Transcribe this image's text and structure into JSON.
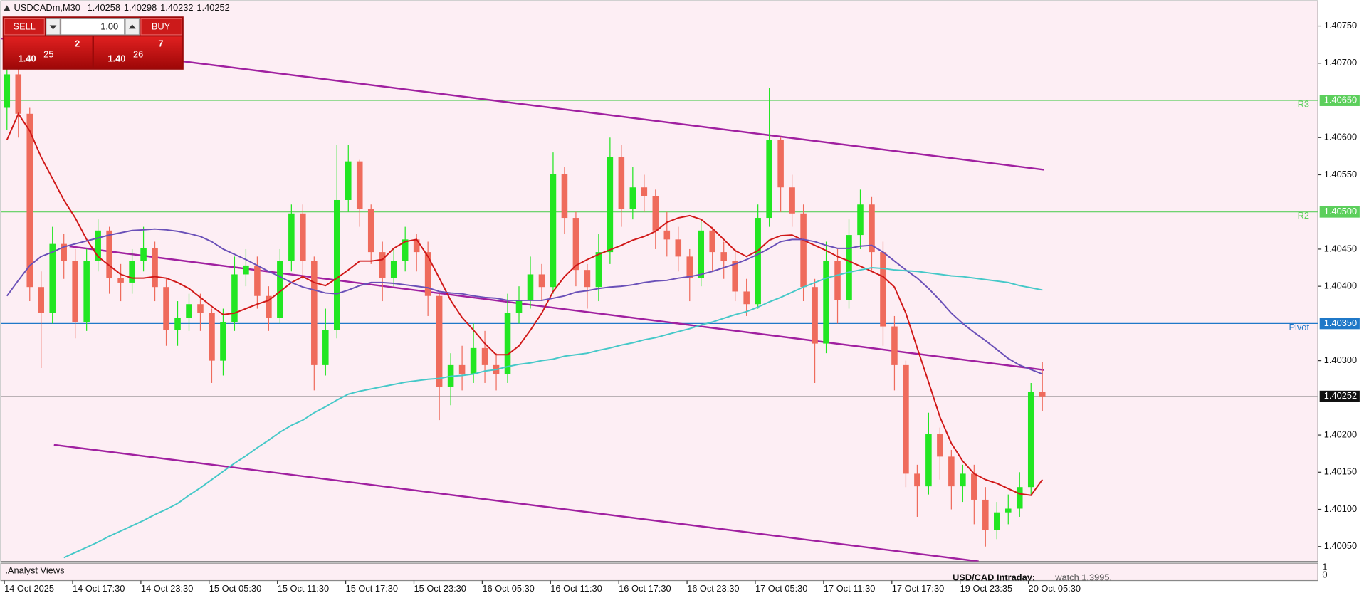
{
  "chart_data": {
    "type": "candlestick",
    "title": "USDCADm,M30",
    "categories": [
      "14 Oct 2025",
      null,
      null,
      null,
      null,
      null,
      "14 Oct 17:30",
      null,
      null,
      null,
      null,
      null,
      "14 Oct 23:30",
      null,
      null,
      null,
      null,
      null,
      "15 Oct 05:30",
      null,
      null,
      null,
      null,
      null,
      "15 Oct 11:30",
      null,
      null,
      null,
      null,
      null,
      "15 Oct 17:30",
      null,
      null,
      null,
      null,
      null,
      "15 Oct 23:30",
      null,
      null,
      null,
      null,
      null,
      "16 Oct 05:30",
      null,
      null,
      null,
      null,
      null,
      "16 Oct 11:30",
      null,
      null,
      null,
      null,
      null,
      "16 Oct 17:30",
      null,
      null,
      null,
      null,
      null,
      "16 Oct 23:30",
      null,
      null,
      null,
      null,
      null,
      "17 Oct 05:30",
      null,
      null,
      null,
      null,
      null,
      "17 Oct 11:30",
      null,
      null,
      null,
      null,
      null,
      "17 Oct 17:30",
      null,
      null,
      null,
      null,
      null,
      "19 Oct 23:35",
      null,
      null,
      null,
      null,
      null,
      "20 Oct 05:30",
      null
    ],
    "open": [
      1.4064,
      1.40685,
      1.40632,
      1.40399,
      1.40364,
      1.40457,
      1.40434,
      1.40352,
      1.40434,
      1.40475,
      1.40411,
      1.40405,
      1.40434,
      1.40451,
      1.40399,
      1.40341,
      1.40358,
      1.40376,
      1.40364,
      1.403,
      1.40352,
      1.40416,
      1.40428,
      1.40387,
      1.40358,
      1.40434,
      1.40498,
      1.40434,
      1.40294,
      1.40341,
      1.40516,
      1.40568,
      1.40504,
      1.40446,
      1.40411,
      1.40434,
      1.40463,
      1.40446,
      1.40387,
      1.40265,
      1.40294,
      1.40282,
      1.40317,
      1.40294,
      1.40282,
      1.40364,
      1.40381,
      1.40416,
      1.40399,
      1.40551,
      1.40492,
      1.40422,
      1.40399,
      1.40446,
      1.40574,
      1.40504,
      1.40533,
      1.40521,
      1.40475,
      1.40463,
      1.4044,
      1.40411,
      1.40475,
      1.40446,
      1.40434,
      1.40393,
      1.40376,
      1.40492,
      1.40597,
      1.40533,
      1.40498,
      1.40399,
      1.40323,
      1.40434,
      1.40381,
      1.40469,
      1.4051,
      1.40446,
      1.40346,
      1.40294,
      1.40148,
      1.40131,
      1.40201,
      1.40171,
      1.40131,
      1.40148,
      1.40113,
      1.40072,
      1.40096,
      1.40101,
      1.4013,
      1.40258
    ],
    "high": [
      1.4072,
      1.407,
      1.4064,
      1.4042,
      1.4048,
      1.4047,
      1.4045,
      1.4045,
      1.4049,
      1.4048,
      1.4043,
      1.4045,
      1.4048,
      1.4046,
      1.4041,
      1.4038,
      1.4039,
      1.4039,
      1.4037,
      1.4037,
      1.4044,
      1.4045,
      1.4044,
      1.404,
      1.4045,
      1.4051,
      1.4051,
      1.4044,
      1.4037,
      1.4059,
      1.4059,
      1.4057,
      1.4051,
      1.4046,
      1.4045,
      1.4048,
      1.4047,
      1.4046,
      1.4039,
      1.4031,
      1.4032,
      1.4035,
      1.4034,
      1.4031,
      1.4039,
      1.404,
      1.4044,
      1.4043,
      1.4058,
      1.4056,
      1.405,
      1.4043,
      1.4047,
      1.406,
      1.4059,
      1.4056,
      1.4055,
      1.4053,
      1.405,
      1.4048,
      1.4045,
      1.4049,
      1.4048,
      1.4046,
      1.4045,
      1.4041,
      1.4051,
      1.40667,
      1.406,
      1.4055,
      1.4051,
      1.4041,
      1.4046,
      1.4045,
      1.4049,
      1.4053,
      1.4052,
      1.4046,
      1.4036,
      1.403,
      1.4016,
      1.4023,
      1.4021,
      1.4018,
      1.4016,
      1.4016,
      1.4013,
      1.4011,
      1.4012,
      1.4015,
      1.4027,
      1.40298
    ],
    "low": [
      1.4061,
      1.406,
      1.4038,
      1.4029,
      1.4035,
      1.4041,
      1.4033,
      1.4034,
      1.4042,
      1.4039,
      1.4038,
      1.4039,
      1.4042,
      1.4038,
      1.4032,
      1.4032,
      1.4034,
      1.4034,
      1.4027,
      1.4028,
      1.4034,
      1.404,
      1.4037,
      1.4034,
      1.4035,
      1.4042,
      1.4041,
      1.4026,
      1.4028,
      1.4033,
      1.405,
      1.4048,
      1.4043,
      1.4038,
      1.404,
      1.4042,
      1.4042,
      1.4036,
      1.4022,
      1.4024,
      1.4026,
      1.4027,
      1.4027,
      1.4026,
      1.4027,
      1.4035,
      1.4037,
      1.4038,
      1.4039,
      1.4047,
      1.404,
      1.4037,
      1.4038,
      1.4043,
      1.4048,
      1.4049,
      1.405,
      1.4045,
      1.4044,
      1.4042,
      1.4038,
      1.404,
      1.4042,
      1.4041,
      1.4038,
      1.4036,
      1.4037,
      1.4048,
      1.405,
      1.4048,
      1.4038,
      1.4027,
      1.4031,
      1.4035,
      1.4037,
      1.4045,
      1.4042,
      1.4032,
      1.4026,
      1.4013,
      1.4009,
      1.4012,
      1.4014,
      1.401,
      1.4011,
      1.4008,
      1.4005,
      1.4006,
      1.4008,
      1.4009,
      1.4012,
      1.40232
    ],
    "close": [
      1.40685,
      1.40632,
      1.40399,
      1.40364,
      1.40457,
      1.40434,
      1.40352,
      1.40434,
      1.40475,
      1.40411,
      1.40405,
      1.40434,
      1.40451,
      1.40399,
      1.40341,
      1.40358,
      1.40376,
      1.40364,
      1.403,
      1.40352,
      1.40416,
      1.40428,
      1.40387,
      1.40358,
      1.40434,
      1.40498,
      1.40434,
      1.40294,
      1.40341,
      1.40516,
      1.40568,
      1.40504,
      1.40446,
      1.40411,
      1.40434,
      1.40463,
      1.40446,
      1.40387,
      1.40265,
      1.40294,
      1.40282,
      1.40317,
      1.40294,
      1.40282,
      1.40364,
      1.40381,
      1.40416,
      1.40399,
      1.40551,
      1.40492,
      1.40422,
      1.40399,
      1.40446,
      1.40574,
      1.40504,
      1.40533,
      1.40521,
      1.40475,
      1.40463,
      1.4044,
      1.40411,
      1.40475,
      1.40446,
      1.40434,
      1.40393,
      1.40376,
      1.40492,
      1.40597,
      1.40533,
      1.40498,
      1.40399,
      1.40323,
      1.40434,
      1.40381,
      1.40469,
      1.4051,
      1.40446,
      1.40346,
      1.40294,
      1.40148,
      1.40131,
      1.40201,
      1.40171,
      1.40131,
      1.40148,
      1.40113,
      1.40072,
      1.40096,
      1.40101,
      1.4013,
      1.40258,
      1.40252
    ],
    "up_color": "#22e622",
    "down_color": "#ef6b5c",
    "series": [
      {
        "color": "#d01818",
        "values": [
          1.40597,
          1.40632,
          1.40609,
          1.40574,
          1.40545,
          1.40516,
          1.40492,
          1.40463,
          1.4044,
          1.40428,
          1.40416,
          1.40411,
          1.40411,
          1.40413,
          1.40411,
          1.40405,
          1.40397,
          1.40385,
          1.40373,
          1.40362,
          1.40364,
          1.4037,
          1.40376,
          1.40381,
          1.40393,
          1.40405,
          1.40413,
          1.40405,
          1.40401,
          1.40411,
          1.40422,
          1.40434,
          1.40434,
          1.40436,
          1.40451,
          1.4046,
          1.40463,
          1.4044,
          1.40411,
          1.40381,
          1.40358,
          1.40341,
          1.40323,
          1.40308,
          1.40308,
          1.4032,
          1.40341,
          1.40364,
          1.40393,
          1.40413,
          1.40428,
          1.40436,
          1.40443,
          1.40449,
          1.40455,
          1.40462,
          1.40467,
          1.40474,
          1.40486,
          1.40492,
          1.40495,
          1.4049,
          1.40478,
          1.40463,
          1.40448,
          1.4044,
          1.40448,
          1.40462,
          1.40468,
          1.40469,
          1.40462,
          1.40455,
          1.40448,
          1.4044,
          1.40434,
          1.40427,
          1.4042,
          1.40413,
          1.40399,
          1.40364,
          1.40317,
          1.40271,
          1.40224,
          1.40189,
          1.40165,
          1.40148,
          1.4014,
          1.40135,
          1.40128,
          1.40121,
          1.40119,
          1.4014
        ]
      },
      {
        "color": "#6a50b8",
        "values": [
          1.40387,
          1.40408,
          1.40428,
          1.4044,
          1.40446,
          1.40453,
          1.40457,
          1.40461,
          1.40465,
          1.40469,
          1.40472,
          1.40475,
          1.40476,
          1.40477,
          1.40476,
          1.40474,
          1.40471,
          1.40467,
          1.4046,
          1.4045,
          1.40443,
          1.40436,
          1.40428,
          1.4042,
          1.40413,
          1.40405,
          1.40399,
          1.40395,
          1.40391,
          1.4039,
          1.40395,
          1.40401,
          1.40405,
          1.40405,
          1.40404,
          1.40402,
          1.404,
          1.40398,
          1.40393,
          1.40391,
          1.4039,
          1.40387,
          1.40385,
          1.40384,
          1.40381,
          1.40381,
          1.40381,
          1.40381,
          1.40384,
          1.40387,
          1.40392,
          1.40394,
          1.40397,
          1.40399,
          1.404,
          1.40402,
          1.40405,
          1.40407,
          1.40408,
          1.40411,
          1.40413,
          1.40416,
          1.4042,
          1.40425,
          1.4043,
          1.40436,
          1.40443,
          1.40451,
          1.4046,
          1.40463,
          1.40463,
          1.4046,
          1.40455,
          1.40451,
          1.40451,
          1.40454,
          1.40455,
          1.40446,
          1.40434,
          1.40422,
          1.40411,
          1.40397,
          1.40381,
          1.40364,
          1.4035,
          1.40338,
          1.40327,
          1.40315,
          1.40303,
          1.40294,
          1.40288,
          1.40282
        ]
      },
      {
        "color": "#45c8c8",
        "values": [
          null,
          null,
          null,
          null,
          null,
          1.40035,
          1.40042,
          1.40049,
          1.40056,
          1.40064,
          1.40071,
          1.40078,
          1.40085,
          1.40093,
          1.401,
          1.40108,
          1.40119,
          1.40129,
          1.4014,
          1.40151,
          1.40162,
          1.40172,
          1.40183,
          1.40193,
          1.40204,
          1.40213,
          1.4022,
          1.4023,
          1.40238,
          1.40247,
          1.40255,
          1.40259,
          1.40262,
          1.40265,
          1.40268,
          1.40271,
          1.40273,
          1.40275,
          1.40276,
          1.40279,
          1.4028,
          1.40282,
          1.40286,
          1.40288,
          1.40292,
          1.40295,
          1.40297,
          1.403,
          1.40302,
          1.40306,
          1.40308,
          1.4031,
          1.40314,
          1.40317,
          1.40321,
          1.40324,
          1.40328,
          1.40331,
          1.40335,
          1.40339,
          1.40343,
          1.40348,
          1.40352,
          1.40357,
          1.40362,
          1.40366,
          1.40372,
          1.40379,
          1.40385,
          1.40392,
          1.40399,
          1.40405,
          1.40411,
          1.40415,
          1.40419,
          1.40422,
          1.40425,
          1.40424,
          1.40422,
          1.40421,
          1.4042,
          1.40418,
          1.40416,
          1.40414,
          1.40413,
          1.40411,
          1.40409,
          1.40407,
          1.40405,
          1.40401,
          1.40398,
          1.40395
        ]
      }
    ],
    "ylim": [
      1.4003,
      1.40785
    ],
    "yticks": [
      {
        "value": 1.4075,
        "label": "1.40750"
      },
      {
        "value": 1.407,
        "label": "1.40700"
      },
      {
        "value": 1.406,
        "label": "1.40600"
      },
      {
        "value": 1.4055,
        "label": "1.40550"
      },
      {
        "value": 1.4045,
        "label": "1.40450"
      },
      {
        "value": 1.404,
        "label": "1.40400"
      },
      {
        "value": 1.403,
        "label": "1.40300"
      },
      {
        "value": 1.402,
        "label": "1.40200"
      },
      {
        "value": 1.4015,
        "label": "1.40150"
      },
      {
        "value": 1.401,
        "label": "1.40100"
      },
      {
        "value": 1.4005,
        "label": "1.40050"
      }
    ],
    "levels": [
      {
        "name": "R3",
        "value": 1.4065,
        "label": "1.40650",
        "color": "#5ccf5c"
      },
      {
        "name": "R2",
        "value": 1.405,
        "label": "1.40500",
        "color": "#5ccf5c"
      },
      {
        "name": "Pivot",
        "value": 1.4035,
        "label": "1.40350",
        "color": "#1f78c8"
      }
    ],
    "current_price": 1.40252,
    "trade_panel": {
      "sell": "SELL",
      "lot": "1.00",
      "buy": "BUY",
      "bid": {
        "handle": "1.40",
        "pips": "25",
        "fraction": "2"
      },
      "ask": {
        "handle": "1.40",
        "pips": "26",
        "fraction": "7"
      }
    },
    "indicator_panel": {
      "label": ".Analyst Views",
      "ylim": [
        0,
        1
      ],
      "news_title": "USD/CAD Intraday:",
      "news_text": "watch 1.3995."
    }
  }
}
